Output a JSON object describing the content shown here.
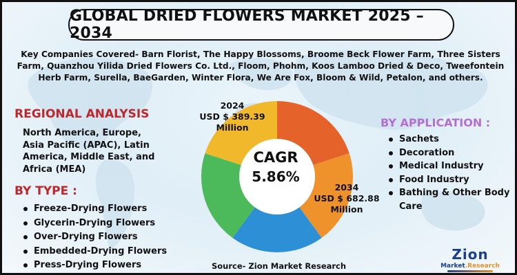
{
  "title": "GLOBAL DRIED FLOWERS MARKET 2025 – 2034",
  "companies": "Key Companies Covered- Barn Florist, The Happy Blossoms, Broome Beck Flower Farm, Three Sisters Farm, Quanzhou Yilida Dried Flowers Co. Ltd., Floom, Phohm, Koos Lamboo Dried & Deco, Tweefontein Herb Farm, Surella, BaeGarden, Winter Flora, We Are Fox, Bloom & Wild, Petalon, and others.",
  "regional": {
    "heading": "REGIONAL ANALYSIS",
    "text": "North America, Europe, Asia Pacific (APAC), Latin America, Middle East, and Africa (MEA)"
  },
  "by_type": {
    "heading": "BY TYPE :",
    "items": [
      "Freeze-Drying Flowers",
      "Glycerin-Drying Flowers",
      "Over-Drying Flowers",
      "Embedded-Drying Flowers",
      "Press-Drying Flowers"
    ]
  },
  "by_application": {
    "heading": "BY APPLICATION :",
    "items": [
      "Sachets",
      "Decoration",
      "Medical Industry",
      "Food Industry",
      "Bathing & Other Body Care"
    ]
  },
  "market_2024": {
    "year": "2024",
    "value": "USD $ 389.39",
    "unit": "Million"
  },
  "market_2034": {
    "year": "2034",
    "value": "USD $ 682.88",
    "unit": "Million"
  },
  "cagr": {
    "label": "CAGR",
    "value": "5.86%"
  },
  "source": "Source- Zion Market Research",
  "logo": {
    "name": "Zion",
    "sub_main": "Market",
    "sub_accent": ".Research"
  },
  "colors": {
    "heading_red": "#c0272d",
    "heading_purple": "#b36fd1",
    "logo_blue": "#1b3f8b",
    "logo_orange": "#e8902c"
  },
  "chart_data": {
    "type": "pie",
    "style": "donut",
    "slices": [
      {
        "color": "#e5622a",
        "value": 20
      },
      {
        "color": "#f0922b",
        "value": 20
      },
      {
        "color": "#2d8fd6",
        "value": 20
      },
      {
        "color": "#4cb95a",
        "value": 20
      },
      {
        "color": "#f1b82c",
        "value": 20
      }
    ]
  }
}
